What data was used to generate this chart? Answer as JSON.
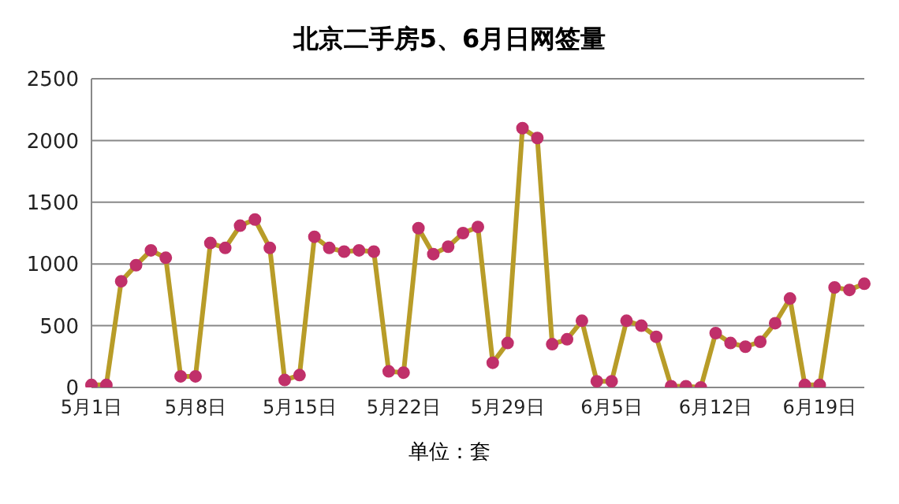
{
  "chart_data": {
    "type": "line",
    "title": "北京二手房5、6月日网签量",
    "xlabel": "单位：套",
    "categories": [
      "5月1日",
      null,
      null,
      null,
      null,
      null,
      null,
      "5月8日",
      null,
      null,
      null,
      null,
      null,
      null,
      "5月15日",
      null,
      null,
      null,
      null,
      null,
      null,
      "5月22日",
      null,
      null,
      null,
      null,
      null,
      null,
      "5月29日",
      null,
      null,
      null,
      null,
      null,
      null,
      "6月5日",
      null,
      null,
      null,
      null,
      null,
      null,
      "6月12日",
      null,
      null,
      null,
      null,
      null,
      null,
      "6月19日",
      null,
      null,
      null
    ],
    "series": [
      {
        "color": "#b89c28",
        "colors": [
          "#c0306a",
          "#c0306a",
          "#c0306a",
          "#c0306a",
          "#c0306a",
          "#c0306a",
          "#c0306a",
          "#c0306a",
          "#c0306a",
          "#c0306a",
          "#c0306a",
          "#c0306a",
          "#c0306a",
          "#c0306a",
          "#c0306a",
          "#c0306a",
          "#c0306a",
          "#c0306a",
          "#c0306a",
          "#c0306a",
          "#c0306a",
          "#c0306a",
          "#c0306a",
          "#c0306a",
          "#c0306a",
          "#c0306a",
          "#c0306a",
          "#c0306a",
          "#c0306a",
          "#c0306a",
          "#c0306a",
          "#c0306a",
          "#c0306a",
          "#c0306a",
          "#c0306a",
          "#c0306a",
          "#c0306a",
          "#c0306a",
          "#c0306a",
          "#c0306a",
          "#c0306a",
          "#c0306a",
          "#c0306a",
          "#c0306a",
          "#c0306a",
          "#c0306a",
          "#c0306a",
          "#c0306a",
          "#c0306a",
          "#c0306a",
          "#c0306a",
          "#c0306a",
          "#c0306a"
        ],
        "values": [
          20,
          20,
          860,
          990,
          1110,
          1050,
          90,
          90,
          1170,
          1130,
          1310,
          1360,
          1130,
          60,
          100,
          1220,
          1130,
          1100,
          1110,
          1100,
          130,
          120,
          1290,
          1080,
          1140,
          1250,
          1300,
          200,
          360,
          2100,
          2020,
          350,
          390,
          540,
          50,
          50,
          540,
          500,
          410,
          10,
          10,
          0,
          440,
          360,
          330,
          370,
          520,
          720,
          20,
          20,
          810,
          790,
          840
        ]
      }
    ],
    "marker": "circle",
    "ylim": [
      0,
      2500
    ],
    "yticks": [
      0,
      500,
      1000,
      1500,
      2000,
      2500
    ],
    "grid": "y"
  }
}
